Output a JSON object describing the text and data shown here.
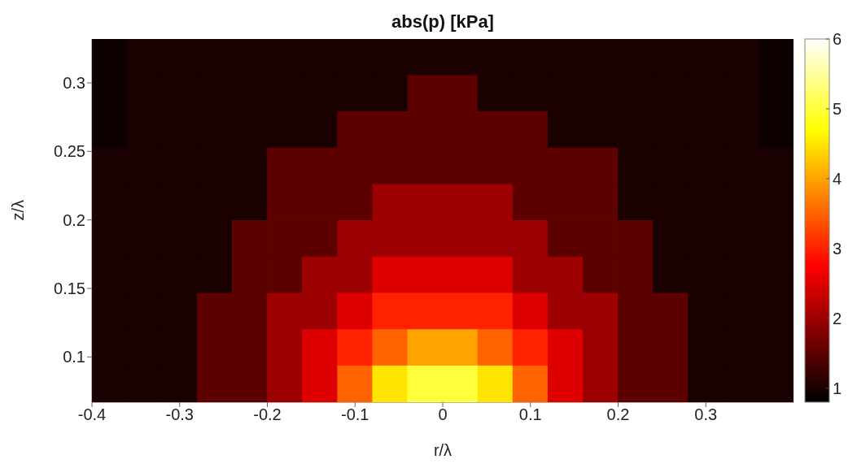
{
  "chart_data": {
    "type": "heatmap",
    "title": "abs(p) [kPa]",
    "xlabel": "r/λ",
    "ylabel": "z/λ",
    "x": [
      -0.38,
      -0.34,
      -0.3,
      -0.26,
      -0.22,
      -0.18,
      -0.14,
      -0.1,
      -0.06,
      -0.02,
      0.02,
      0.06,
      0.1,
      0.14,
      0.18,
      0.22,
      0.26,
      0.3,
      0.34,
      0.38
    ],
    "cells": [
      [
        0.9,
        1.0,
        1.0,
        1.0,
        1.0,
        1.0,
        1.0,
        1.0,
        1.0,
        1.0,
        1.0,
        1.0,
        1.0,
        1.0,
        1.0,
        1.0,
        1.0,
        1.0,
        1.0,
        0.9
      ],
      [
        0.9,
        1.0,
        1.0,
        1.0,
        1.0,
        1.0,
        1.0,
        1.0,
        1.0,
        1.5,
        1.5,
        1.0,
        1.0,
        1.0,
        1.0,
        1.0,
        1.0,
        1.0,
        1.0,
        0.9
      ],
      [
        0.9,
        1.0,
        1.0,
        1.0,
        1.0,
        1.0,
        1.0,
        1.5,
        1.5,
        1.5,
        1.5,
        1.5,
        1.5,
        1.0,
        1.0,
        1.0,
        1.0,
        1.0,
        1.0,
        0.9
      ],
      [
        1.0,
        1.0,
        1.0,
        1.0,
        1.0,
        1.5,
        1.5,
        1.5,
        1.5,
        1.5,
        1.5,
        1.5,
        1.5,
        1.5,
        1.5,
        1.0,
        1.0,
        1.0,
        1.0,
        1.0
      ],
      [
        1.0,
        1.0,
        1.0,
        1.0,
        1.0,
        1.5,
        1.5,
        1.5,
        2.0,
        2.0,
        2.0,
        2.0,
        1.5,
        1.5,
        1.5,
        1.0,
        1.0,
        1.0,
        1.0,
        1.0
      ],
      [
        1.0,
        1.0,
        1.0,
        1.0,
        1.5,
        1.5,
        1.5,
        2.0,
        2.0,
        2.0,
        2.0,
        2.0,
        2.0,
        1.5,
        1.5,
        1.5,
        1.0,
        1.0,
        1.0,
        1.0
      ],
      [
        1.0,
        1.0,
        1.0,
        1.0,
        1.5,
        1.5,
        2.0,
        2.0,
        2.5,
        2.5,
        2.5,
        2.5,
        2.0,
        2.0,
        1.5,
        1.5,
        1.0,
        1.0,
        1.0,
        1.0
      ],
      [
        1.0,
        1.0,
        1.0,
        1.5,
        1.5,
        2.0,
        2.0,
        2.5,
        3.0,
        3.0,
        3.0,
        3.0,
        2.5,
        2.0,
        2.0,
        1.5,
        1.5,
        1.0,
        1.0,
        1.0
      ],
      [
        1.0,
        1.0,
        1.0,
        1.5,
        1.5,
        2.0,
        2.5,
        3.0,
        3.5,
        4.0,
        4.0,
        3.5,
        3.0,
        2.5,
        2.0,
        1.5,
        1.5,
        1.0,
        1.0,
        1.0
      ],
      [
        1.0,
        1.0,
        1.0,
        1.5,
        1.5,
        2.0,
        2.5,
        3.5,
        4.5,
        5.0,
        5.0,
        4.5,
        3.5,
        2.5,
        2.0,
        1.5,
        1.5,
        1.0,
        1.0,
        1.0
      ]
    ],
    "xlim": [
      -0.4,
      0.4
    ],
    "xticks": [
      -0.4,
      -0.3,
      -0.2,
      -0.1,
      0,
      0.1,
      0.2,
      0.3
    ],
    "ylim": [
      0.067,
      0.332
    ],
    "yticks": [
      0.1,
      0.15,
      0.2,
      0.25,
      0.3
    ],
    "clim": [
      0.8,
      6
    ],
    "cticks": [
      1,
      2,
      3,
      4,
      5,
      6
    ]
  }
}
